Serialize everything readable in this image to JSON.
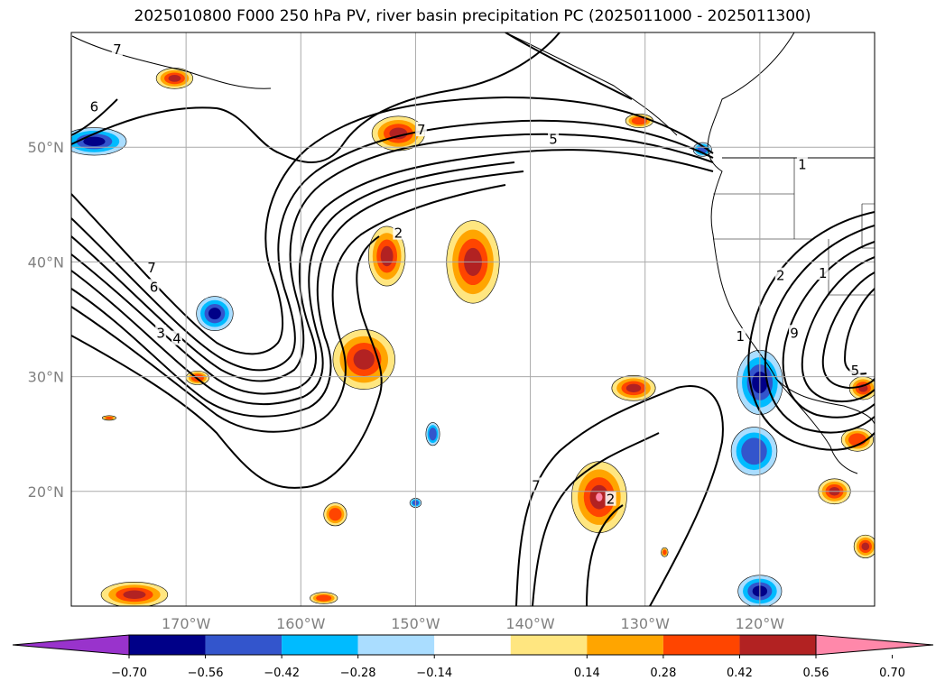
{
  "title": "2025010800 F000 250 hPa PV, river basin precipitation PC (2025011000 - 2025011300)",
  "map": {
    "lon_range": [
      -180,
      -110
    ],
    "lat_range": [
      10,
      60
    ],
    "lat_ticks": [
      {
        "value": 20,
        "label": "20°N"
      },
      {
        "value": 30,
        "label": "30°N"
      },
      {
        "value": 40,
        "label": "40°N"
      },
      {
        "value": 50,
        "label": "50°N"
      }
    ],
    "lon_ticks": [
      {
        "value": -170,
        "label": "170°W"
      },
      {
        "value": -160,
        "label": "160°W"
      },
      {
        "value": -150,
        "label": "150°W"
      },
      {
        "value": -140,
        "label": "140°W"
      },
      {
        "value": -130,
        "label": "130°W"
      },
      {
        "value": -120,
        "label": "120°W"
      }
    ],
    "grid": true,
    "contour_labels": [
      {
        "text": "7",
        "lon": -176,
        "lat": 58.5
      },
      {
        "text": "6",
        "lon": -178,
        "lat": 53.5
      },
      {
        "text": "7",
        "lon": -149.5,
        "lat": 51.5
      },
      {
        "text": "5",
        "lon": -138,
        "lat": 50.7
      },
      {
        "text": "2",
        "lon": -151.5,
        "lat": 42.5
      },
      {
        "text": "7",
        "lon": -173,
        "lat": 39.5
      },
      {
        "text": "6",
        "lon": -172.8,
        "lat": 37.8
      },
      {
        "text": "4",
        "lon": -170.8,
        "lat": 33.3
      },
      {
        "text": "3",
        "lon": -172.2,
        "lat": 33.8
      },
      {
        "text": "7",
        "lon": -139.5,
        "lat": 20.5
      },
      {
        "text": "2",
        "lon": -133,
        "lat": 19.3
      },
      {
        "text": "1",
        "lon": -121.7,
        "lat": 33.5
      },
      {
        "text": "2",
        "lon": -118.2,
        "lat": 38.8
      },
      {
        "text": "1",
        "lon": -114.5,
        "lat": 39.0
      },
      {
        "text": "1",
        "lon": -116.3,
        "lat": 48.5
      },
      {
        "text": "5",
        "lon": -111.7,
        "lat": 30.5
      },
      {
        "text": "9",
        "lon": -117,
        "lat": 33.8
      }
    ],
    "fields": [
      {
        "lon": -171,
        "lat": 56.0,
        "rx": 1.6,
        "ry": 0.9,
        "level": 4
      },
      {
        "lon": -178,
        "lat": 50.5,
        "rx": 2.8,
        "ry": 1.2,
        "level": -4
      },
      {
        "lon": -151.5,
        "lat": 51.2,
        "rx": 2.3,
        "ry": 1.5,
        "level": 4
      },
      {
        "lon": -152.5,
        "lat": 40.5,
        "rx": 1.6,
        "ry": 2.6,
        "level": 4
      },
      {
        "lon": -154.5,
        "lat": 31.5,
        "rx": 2.7,
        "ry": 2.6,
        "level": 4
      },
      {
        "lon": -145.0,
        "lat": 40.0,
        "rx": 2.3,
        "ry": 3.6,
        "level": 4
      },
      {
        "lon": -167.5,
        "lat": 35.5,
        "rx": 1.6,
        "ry": 1.5,
        "level": -4
      },
      {
        "lon": -169.0,
        "lat": 29.9,
        "rx": 1.0,
        "ry": 0.6,
        "level": 3
      },
      {
        "lon": -176.7,
        "lat": 26.4,
        "rx": 0.6,
        "ry": 0.2,
        "level": 3
      },
      {
        "lon": -131.0,
        "lat": 29.0,
        "rx": 1.9,
        "ry": 1.1,
        "level": 4
      },
      {
        "lon": -134.0,
        "lat": 19.5,
        "rx": 2.4,
        "ry": 3.1,
        "level": 5
      },
      {
        "lon": -120.0,
        "lat": 29.5,
        "rx": 2.0,
        "ry": 2.8,
        "level": -4
      },
      {
        "lon": -120.5,
        "lat": 23.5,
        "rx": 2.0,
        "ry": 2.1,
        "level": -3
      },
      {
        "lon": -120.0,
        "lat": 11.3,
        "rx": 1.9,
        "ry": 1.4,
        "level": -4
      },
      {
        "lon": -174.5,
        "lat": 11.0,
        "rx": 2.9,
        "ry": 1.1,
        "level": 4
      },
      {
        "lon": -158.0,
        "lat": 10.7,
        "rx": 1.2,
        "ry": 0.5,
        "level": 3
      },
      {
        "lon": -157.0,
        "lat": 18.0,
        "rx": 1.0,
        "ry": 1.0,
        "level": 3
      },
      {
        "lon": -148.5,
        "lat": 25.0,
        "rx": 0.6,
        "ry": 1.0,
        "level": -3
      },
      {
        "lon": -130.5,
        "lat": 52.3,
        "rx": 1.2,
        "ry": 0.6,
        "level": 3
      },
      {
        "lon": -125.0,
        "lat": 49.8,
        "rx": 0.8,
        "ry": 0.6,
        "level": -3
      },
      {
        "lon": -111.0,
        "lat": 29.0,
        "rx": 1.2,
        "ry": 1.0,
        "level": 4
      },
      {
        "lon": -111.5,
        "lat": 24.5,
        "rx": 1.4,
        "ry": 1.0,
        "level": 3
      },
      {
        "lon": -113.5,
        "lat": 20.0,
        "rx": 1.4,
        "ry": 1.1,
        "level": 4
      },
      {
        "lon": -110.8,
        "lat": 15.2,
        "rx": 1.0,
        "ry": 1.0,
        "level": 4
      },
      {
        "lon": -150.0,
        "lat": 19.0,
        "rx": 0.5,
        "ry": 0.4,
        "level": -3
      },
      {
        "lon": -128.3,
        "lat": 14.7,
        "rx": 0.3,
        "ry": 0.4,
        "level": 3
      }
    ]
  },
  "colorbar": {
    "ticks": [
      "−0.70",
      "−0.56",
      "−0.42",
      "−0.28",
      "−0.14",
      "0.14",
      "0.28",
      "0.42",
      "0.56",
      "0.70"
    ],
    "colors": [
      "#9933cc",
      "#000088",
      "#3355cc",
      "#00bbff",
      "#aaddff",
      "#ffffff",
      "#ffe680",
      "#ffa500",
      "#ff4500",
      "#b22222",
      "#ff88aa"
    ],
    "edge": "#000000"
  }
}
